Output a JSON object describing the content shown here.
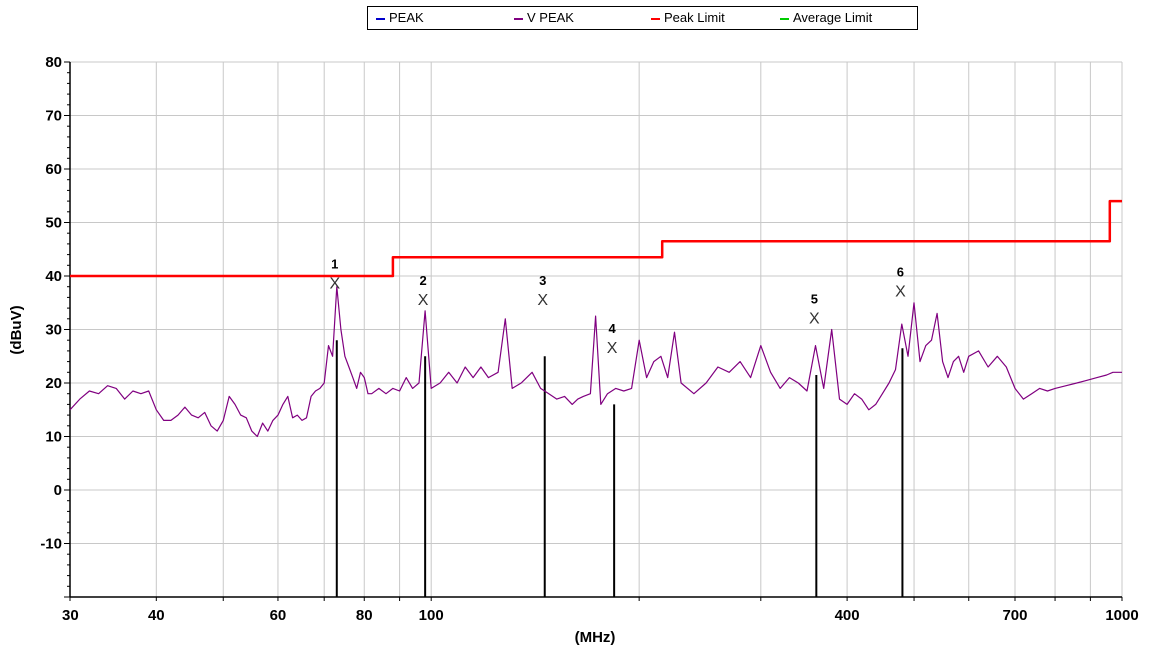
{
  "legend": {
    "items": [
      {
        "label": "PEAK",
        "color": "#0000cc"
      },
      {
        "label": "V PEAK",
        "color": "#800080"
      },
      {
        "label": "Peak Limit",
        "color": "#ff0000"
      },
      {
        "label": "Average Limit",
        "color": "#00cc00"
      }
    ]
  },
  "chart_data": {
    "type": "line",
    "xlabel": "(MHz)",
    "ylabel": "(dBuV)",
    "xscale": "log",
    "xlim": [
      30,
      1000
    ],
    "ylim": [
      -20,
      80
    ],
    "grid": true,
    "legend_position": "top-center",
    "x_ticks": [
      30,
      40,
      60,
      80,
      100,
      400,
      700,
      1000
    ],
    "x_tick_labels": [
      "30",
      "40",
      "60",
      "80",
      "100",
      "400",
      "700",
      "1000"
    ],
    "y_ticks": [
      -10,
      0,
      10,
      20,
      30,
      40,
      50,
      60,
      70,
      80
    ],
    "y_tick_labels": [
      "-10",
      "0",
      "10",
      "20",
      "30",
      "40",
      "50",
      "60",
      "70",
      "80"
    ],
    "series": [
      {
        "name": "V PEAK",
        "color": "#800080",
        "points": [
          [
            30,
            15
          ],
          [
            31,
            17
          ],
          [
            32,
            18.5
          ],
          [
            33,
            18
          ],
          [
            34,
            19.5
          ],
          [
            35,
            19
          ],
          [
            36,
            17
          ],
          [
            37,
            18.5
          ],
          [
            38,
            18
          ],
          [
            39,
            18.5
          ],
          [
            40,
            15
          ],
          [
            41,
            13
          ],
          [
            42,
            13
          ],
          [
            43,
            14
          ],
          [
            44,
            15.5
          ],
          [
            45,
            14
          ],
          [
            46,
            13.5
          ],
          [
            47,
            14.5
          ],
          [
            48,
            12
          ],
          [
            49,
            11
          ],
          [
            50,
            13
          ],
          [
            51,
            17.5
          ],
          [
            52,
            16
          ],
          [
            53,
            14
          ],
          [
            54,
            13.5
          ],
          [
            55,
            11
          ],
          [
            56,
            10
          ],
          [
            57,
            12.5
          ],
          [
            58,
            11
          ],
          [
            59,
            13
          ],
          [
            60,
            14
          ],
          [
            61,
            16
          ],
          [
            62,
            17.5
          ],
          [
            63,
            13.5
          ],
          [
            64,
            14
          ],
          [
            65,
            13
          ],
          [
            66,
            13.5
          ],
          [
            67,
            17.5
          ],
          [
            68,
            18.5
          ],
          [
            69,
            19
          ],
          [
            70,
            20
          ],
          [
            71,
            27
          ],
          [
            72,
            25
          ],
          [
            73,
            38
          ],
          [
            74,
            30
          ],
          [
            75,
            25
          ],
          [
            76,
            23
          ],
          [
            77,
            21
          ],
          [
            78,
            19
          ],
          [
            79,
            22
          ],
          [
            80,
            21
          ],
          [
            81,
            18
          ],
          [
            82,
            18
          ],
          [
            84,
            19
          ],
          [
            86,
            18
          ],
          [
            88,
            19
          ],
          [
            90,
            18.5
          ],
          [
            92,
            21
          ],
          [
            94,
            19
          ],
          [
            96,
            20
          ],
          [
            98,
            33.5
          ],
          [
            100,
            19
          ],
          [
            103,
            20
          ],
          [
            106,
            22
          ],
          [
            109,
            20
          ],
          [
            112,
            23
          ],
          [
            115,
            21
          ],
          [
            118,
            23
          ],
          [
            121,
            21
          ],
          [
            125,
            22
          ],
          [
            128,
            32
          ],
          [
            131,
            19
          ],
          [
            135,
            20
          ],
          [
            140,
            22
          ],
          [
            144,
            19
          ],
          [
            148,
            18
          ],
          [
            152,
            17
          ],
          [
            156,
            17.5
          ],
          [
            160,
            16
          ],
          [
            163,
            17
          ],
          [
            166,
            17.5
          ],
          [
            170,
            18
          ],
          [
            173,
            32.5
          ],
          [
            176,
            16
          ],
          [
            180,
            18
          ],
          [
            185,
            19
          ],
          [
            190,
            18.5
          ],
          [
            195,
            19
          ],
          [
            200,
            28
          ],
          [
            205,
            21
          ],
          [
            210,
            24
          ],
          [
            215,
            25
          ],
          [
            220,
            21
          ],
          [
            225,
            29.5
          ],
          [
            230,
            20
          ],
          [
            240,
            18
          ],
          [
            250,
            20
          ],
          [
            260,
            23
          ],
          [
            270,
            22
          ],
          [
            280,
            24
          ],
          [
            290,
            21
          ],
          [
            300,
            27
          ],
          [
            310,
            22
          ],
          [
            320,
            19
          ],
          [
            330,
            21
          ],
          [
            340,
            20
          ],
          [
            350,
            18.5
          ],
          [
            360,
            27
          ],
          [
            370,
            19
          ],
          [
            380,
            30
          ],
          [
            390,
            17
          ],
          [
            400,
            16
          ],
          [
            410,
            18
          ],
          [
            420,
            17
          ],
          [
            430,
            15
          ],
          [
            440,
            16
          ],
          [
            450,
            18
          ],
          [
            460,
            20
          ],
          [
            470,
            22.5
          ],
          [
            480,
            31
          ],
          [
            490,
            25
          ],
          [
            500,
            35
          ],
          [
            510,
            24
          ],
          [
            520,
            27
          ],
          [
            530,
            28
          ],
          [
            540,
            33
          ],
          [
            550,
            24
          ],
          [
            560,
            21
          ],
          [
            570,
            24
          ],
          [
            580,
            25
          ],
          [
            590,
            22
          ],
          [
            600,
            25
          ],
          [
            620,
            26
          ],
          [
            640,
            23
          ],
          [
            660,
            25
          ],
          [
            680,
            23
          ],
          [
            700,
            19
          ],
          [
            720,
            17
          ],
          [
            740,
            18
          ],
          [
            760,
            19
          ],
          [
            780,
            18.5
          ],
          [
            800,
            19
          ],
          [
            830,
            19.5
          ],
          [
            860,
            20
          ],
          [
            890,
            20.5
          ],
          [
            920,
            21
          ],
          [
            950,
            21.5
          ],
          [
            970,
            22
          ],
          [
            1000,
            22
          ]
        ]
      },
      {
        "name": "Peak Limit",
        "color": "#ff0000",
        "points": [
          [
            30,
            40
          ],
          [
            88,
            40
          ],
          [
            88,
            43.5
          ],
          [
            216,
            43.5
          ],
          [
            216,
            46.5
          ],
          [
            960,
            46.5
          ],
          [
            960,
            54
          ],
          [
            1000,
            54
          ]
        ]
      }
    ],
    "markers": [
      {
        "label": "1",
        "freq": 73,
        "level": 38
      },
      {
        "label": "2",
        "freq": 98,
        "level": 35
      },
      {
        "label": "3",
        "freq": 146,
        "level": 35
      },
      {
        "label": "4",
        "freq": 184,
        "level": 26
      },
      {
        "label": "5",
        "freq": 361,
        "level": 31.5
      },
      {
        "label": "6",
        "freq": 481,
        "level": 36.5
      }
    ]
  }
}
